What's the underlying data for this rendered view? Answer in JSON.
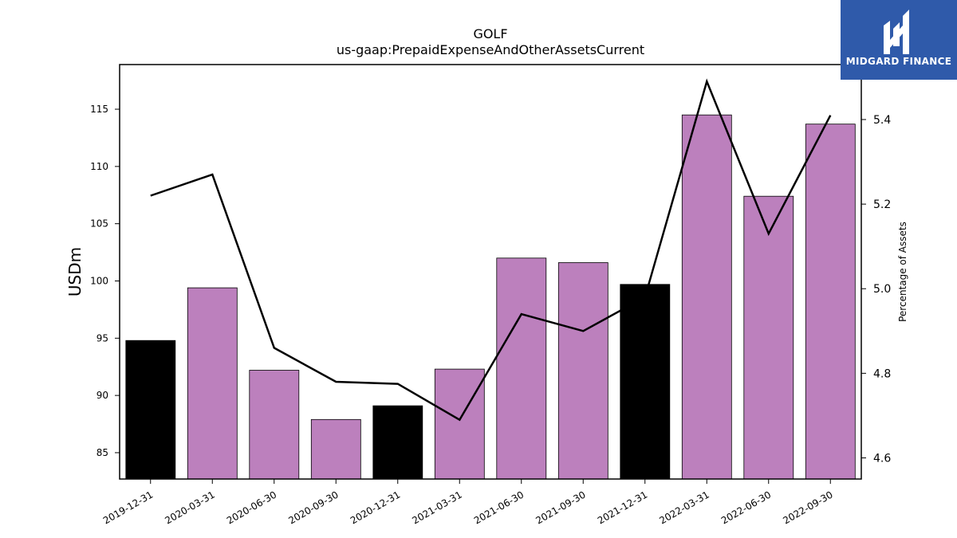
{
  "logo": {
    "text": "MIDGARD FINANCE",
    "bg_color": "#2f5aaa"
  },
  "chart_data": {
    "type": "bar",
    "title": "GOLF",
    "subtitle": "us-gaap:PrepaidExpenseAndOtherAssetsCurrent",
    "ylabel": "USDm",
    "y2label": "Percentage of Assets",
    "ylim": [
      82.7,
      118.9
    ],
    "y2lim": [
      4.55,
      5.53
    ],
    "yticks": [
      85,
      90,
      95,
      100,
      105,
      110,
      115
    ],
    "y2ticks": [
      "4.6",
      "4.8",
      "5.0",
      "5.2",
      "5.4"
    ],
    "categories": [
      "2019-12-31",
      "2020-03-31",
      "2020-06-30",
      "2020-09-30",
      "2020-12-31",
      "2021-03-31",
      "2021-06-30",
      "2021-09-30",
      "2021-12-31",
      "2022-03-31",
      "2022-06-30",
      "2022-09-30"
    ],
    "values": [
      94.8,
      99.4,
      92.2,
      87.9,
      89.1,
      92.3,
      102.0,
      101.6,
      99.7,
      114.5,
      107.4,
      113.7
    ],
    "bar_colors": [
      "#000000",
      "#bc80bd",
      "#bc80bd",
      "#bc80bd",
      "#000000",
      "#bc80bd",
      "#bc80bd",
      "#bc80bd",
      "#000000",
      "#bc80bd",
      "#bc80bd",
      "#bc80bd"
    ],
    "line_values": [
      5.22,
      5.27,
      4.86,
      4.78,
      4.775,
      4.69,
      4.94,
      4.9,
      4.98,
      5.49,
      5.13,
      5.41
    ],
    "line_color": "#000000",
    "grid": false
  }
}
